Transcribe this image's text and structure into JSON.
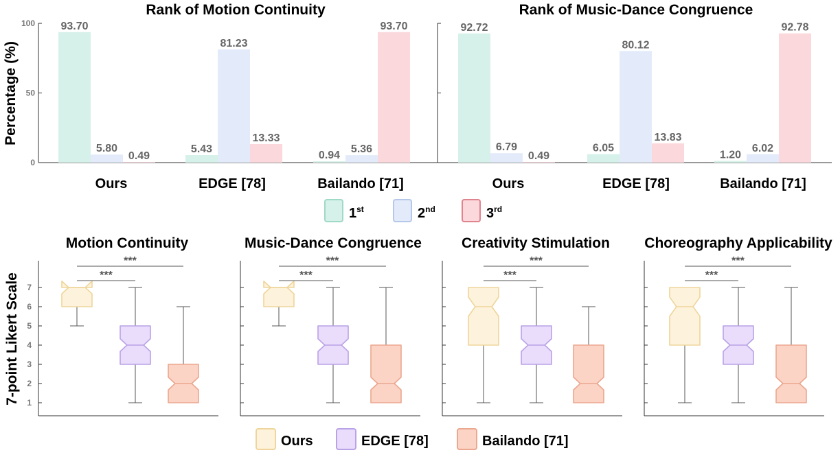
{
  "colors": {
    "rank_fill": [
      "#d6f1e9",
      "#e3ebfa",
      "#fbd8dc"
    ],
    "rank_stroke": [
      "#9fd9c7",
      "#b6c8ea",
      "#e0838d"
    ],
    "box_fill": [
      "#fdf3dc",
      "#e9ddfb",
      "#fbd4c6"
    ],
    "box_stroke": [
      "#efd59b",
      "#b9a2e6",
      "#eba78f"
    ],
    "whisker": "#555555",
    "significance": "#555555"
  },
  "rank_legend": [
    {
      "label": "1",
      "sup": "st"
    },
    {
      "label": "2",
      "sup": "nd"
    },
    {
      "label": "3",
      "sup": "rd"
    }
  ],
  "method_legend": [
    "Ours",
    "EDGE [78]",
    "Bailando [71]"
  ],
  "chart_data": [
    {
      "type": "bar",
      "title": "Rank of Motion Continuity",
      "ylabel": "Percentage (%)",
      "ylim": [
        0,
        100
      ],
      "yticks": [
        0,
        50,
        100
      ],
      "categories": [
        "Ours",
        "EDGE [78]",
        "Bailando [71]"
      ],
      "series": [
        {
          "values": [
            93.7,
            5.43,
            0.94
          ]
        },
        {
          "values": [
            5.8,
            81.23,
            5.36
          ]
        },
        {
          "values": [
            0.49,
            13.33,
            93.7
          ]
        }
      ],
      "value_labels": [
        [
          "93.70",
          "5.43",
          "0.94"
        ],
        [
          "5.80",
          "81.23",
          "5.36"
        ],
        [
          "0.49",
          "13.33",
          "93.70"
        ]
      ]
    },
    {
      "type": "bar",
      "title": "Rank of Music-Dance Congruence",
      "ylabel": "",
      "ylim": [
        0,
        100
      ],
      "yticks": [
        0,
        50,
        100
      ],
      "categories": [
        "Ours",
        "EDGE [78]",
        "Bailando [71]"
      ],
      "series": [
        {
          "values": [
            92.72,
            6.05,
            1.2
          ]
        },
        {
          "values": [
            6.79,
            80.12,
            6.02
          ]
        },
        {
          "values": [
            0.49,
            13.83,
            92.78
          ]
        }
      ],
      "value_labels": [
        [
          "92.72",
          "6.05",
          "1.20"
        ],
        [
          "6.79",
          "80.12",
          "6.02"
        ],
        [
          "0.49",
          "13.83",
          "92.78"
        ]
      ]
    },
    {
      "type": "box",
      "title": "Motion Continuity",
      "ylabel": "7-point Likert Scale",
      "ylim": [
        0.5,
        8
      ],
      "yticks": [
        1,
        2,
        3,
        4,
        5,
        6,
        7
      ],
      "boxes": [
        {
          "whisker_low": 5,
          "q1": 6,
          "median": 7,
          "q3": 7,
          "whisker_high": 7,
          "notch": 0.33
        },
        {
          "whisker_low": 1,
          "q1": 3,
          "median": 4,
          "q3": 5,
          "whisker_high": 7,
          "notch": 0.33
        },
        {
          "whisker_low": 1,
          "q1": 1,
          "median": 2,
          "q3": 3,
          "whisker_high": 6,
          "notch": 0.33
        }
      ],
      "significance": [
        {
          "from": 0,
          "to": 1,
          "label": "***"
        },
        {
          "from": 0,
          "to": 2,
          "label": "***"
        }
      ]
    },
    {
      "type": "box",
      "title": "Music-Dance Congruence",
      "ylabel": "",
      "ylim": [
        0.5,
        8
      ],
      "yticks": [
        1,
        2,
        3,
        4,
        5,
        6,
        7
      ],
      "boxes": [
        {
          "whisker_low": 5,
          "q1": 6,
          "median": 7,
          "q3": 7,
          "whisker_high": 7,
          "notch": 0.33
        },
        {
          "whisker_low": 1,
          "q1": 3,
          "median": 4,
          "q3": 5,
          "whisker_high": 7,
          "notch": 0.33
        },
        {
          "whisker_low": 1,
          "q1": 1,
          "median": 2,
          "q3": 4,
          "whisker_high": 7,
          "notch": 0.33
        }
      ],
      "significance": [
        {
          "from": 0,
          "to": 1,
          "label": "***"
        },
        {
          "from": 0,
          "to": 2,
          "label": "***"
        }
      ]
    },
    {
      "type": "box",
      "title": "Creativity Stimulation",
      "ylabel": "",
      "ylim": [
        0.5,
        8
      ],
      "yticks": [
        1,
        2,
        3,
        4,
        5,
        6,
        7
      ],
      "boxes": [
        {
          "whisker_low": 1,
          "q1": 4,
          "median": 6,
          "q3": 7,
          "whisker_high": 7,
          "notch": 0.5
        },
        {
          "whisker_low": 1,
          "q1": 3,
          "median": 4,
          "q3": 5,
          "whisker_high": 7,
          "notch": 0.33
        },
        {
          "whisker_low": 1,
          "q1": 1,
          "median": 2,
          "q3": 4,
          "whisker_high": 6,
          "notch": 0.33
        }
      ],
      "significance": [
        {
          "from": 0,
          "to": 1,
          "label": "***"
        },
        {
          "from": 0,
          "to": 2,
          "label": "***"
        }
      ]
    },
    {
      "type": "box",
      "title": "Choreography Applicability",
      "ylabel": "",
      "ylim": [
        0.5,
        8
      ],
      "yticks": [
        1,
        2,
        3,
        4,
        5,
        6,
        7
      ],
      "boxes": [
        {
          "whisker_low": 1,
          "q1": 4,
          "median": 6,
          "q3": 7,
          "whisker_high": 7,
          "notch": 0.5
        },
        {
          "whisker_low": 1,
          "q1": 3,
          "median": 4,
          "q3": 5,
          "whisker_high": 7,
          "notch": 0.33
        },
        {
          "whisker_low": 1,
          "q1": 1,
          "median": 2,
          "q3": 4,
          "whisker_high": 7,
          "notch": 0.33
        }
      ],
      "significance": [
        {
          "from": 0,
          "to": 1,
          "label": "***"
        },
        {
          "from": 0,
          "to": 2,
          "label": "***"
        }
      ]
    }
  ]
}
